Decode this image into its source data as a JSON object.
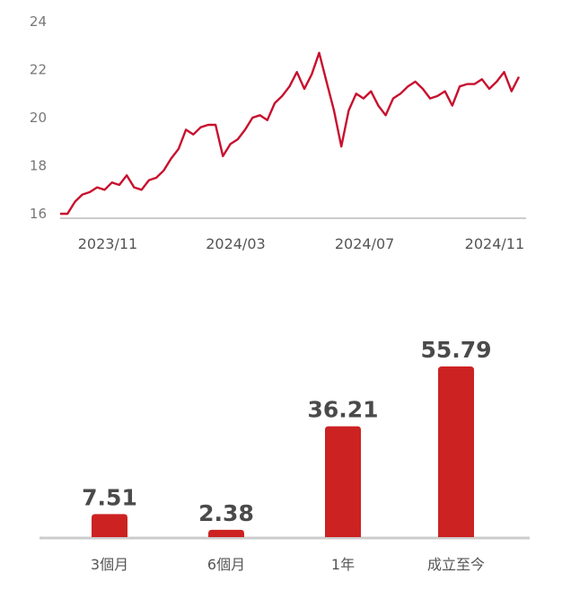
{
  "chart_data": [
    {
      "type": "line",
      "title": "",
      "xlabel": "",
      "ylabel": "",
      "ylim": [
        16,
        24
      ],
      "y_ticks": [
        "16",
        "18",
        "20",
        "22",
        "24"
      ],
      "x_ticks": [
        "2023/11",
        "2024/03",
        "2024/07",
        "2024/11"
      ],
      "grid": false,
      "color": "#c8102e",
      "series": [
        {
          "x": [
            "2023-10-01",
            "2023-10-08",
            "2023-10-15",
            "2023-10-22",
            "2023-10-29",
            "2023-11-05",
            "2023-11-12",
            "2023-11-19",
            "2023-11-26",
            "2023-12-03",
            "2023-12-10",
            "2023-12-17",
            "2023-12-24",
            "2023-12-31",
            "2024-01-07",
            "2024-01-14",
            "2024-01-21",
            "2024-01-28",
            "2024-02-04",
            "2024-02-11",
            "2024-02-18",
            "2024-02-25",
            "2024-03-03",
            "2024-03-10",
            "2024-03-17",
            "2024-03-24",
            "2024-03-31",
            "2024-04-07",
            "2024-04-14",
            "2024-04-21",
            "2024-04-28",
            "2024-05-05",
            "2024-05-12",
            "2024-05-19",
            "2024-05-26",
            "2024-06-02",
            "2024-06-09",
            "2024-06-16",
            "2024-06-23",
            "2024-06-30",
            "2024-07-07",
            "2024-07-14",
            "2024-07-21",
            "2024-07-28",
            "2024-08-04",
            "2024-08-11",
            "2024-08-18",
            "2024-08-25",
            "2024-09-01",
            "2024-09-08",
            "2024-09-15",
            "2024-09-22",
            "2024-09-29",
            "2024-10-06",
            "2024-10-13",
            "2024-10-20",
            "2024-10-27",
            "2024-11-03",
            "2024-11-10",
            "2024-11-17",
            "2024-11-24",
            "2024-12-01",
            "2024-12-08"
          ],
          "values": [
            16.0,
            16.0,
            16.5,
            16.8,
            16.9,
            17.1,
            17.0,
            17.3,
            17.2,
            17.6,
            17.1,
            17.0,
            17.4,
            17.5,
            17.8,
            18.3,
            18.7,
            19.5,
            19.3,
            19.6,
            19.7,
            19.7,
            18.4,
            18.9,
            19.1,
            19.5,
            20.0,
            20.1,
            19.9,
            20.6,
            20.9,
            21.3,
            21.9,
            21.2,
            21.8,
            22.7,
            21.5,
            20.3,
            18.8,
            20.3,
            21.0,
            20.8,
            21.1,
            20.5,
            20.1,
            20.8,
            21.0,
            21.3,
            21.5,
            21.2,
            20.8,
            20.9,
            21.1,
            20.5,
            21.3,
            21.4,
            21.4,
            21.6,
            21.2,
            21.5,
            21.9,
            21.1,
            21.7
          ]
        }
      ]
    },
    {
      "type": "bar",
      "title": "",
      "xlabel": "",
      "ylabel": "",
      "categories": [
        "3個月",
        "6個月",
        "1年",
        "成立至今"
      ],
      "values": [
        7.51,
        2.38,
        36.21,
        55.79
      ],
      "labels": [
        "7.51",
        "2.38",
        "36.21",
        "55.79"
      ],
      "ylim": [
        0,
        60
      ],
      "color": "#cc2222"
    }
  ]
}
